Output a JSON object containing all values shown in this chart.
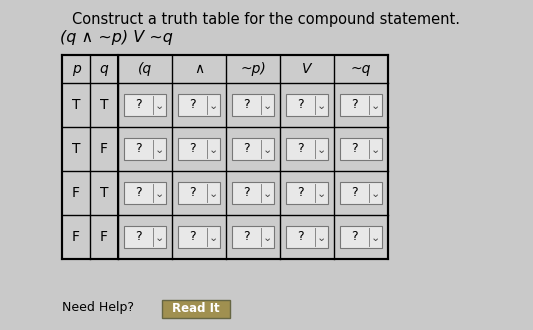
{
  "title_line1": "Construct a truth table for the compound statement.",
  "title_line2": "(q ∧ ~p) V ~q",
  "bg_color": "#c9c9c9",
  "table_bg": "#cccccc",
  "cell_bg": "#efefef",
  "header_row": [
    "p",
    "q",
    "(q",
    "∧",
    "~p)",
    "V",
    "~q"
  ],
  "data_rows": [
    [
      "T",
      "T",
      "?",
      "?",
      "?",
      "?",
      "?"
    ],
    [
      "T",
      "F",
      "?",
      "?",
      "?",
      "?",
      "?"
    ],
    [
      "F",
      "T",
      "?",
      "?",
      "?",
      "?",
      "?"
    ],
    [
      "F",
      "F",
      "?",
      "?",
      "?",
      "?",
      "?"
    ]
  ],
  "bottom_text": "Need Help?",
  "button_text": "Read It",
  "title_fontsize": 10.5,
  "subtitle_fontsize": 11.5,
  "header_fontsize": 10,
  "cell_fontsize": 10,
  "dropdown_fontsize": 9
}
